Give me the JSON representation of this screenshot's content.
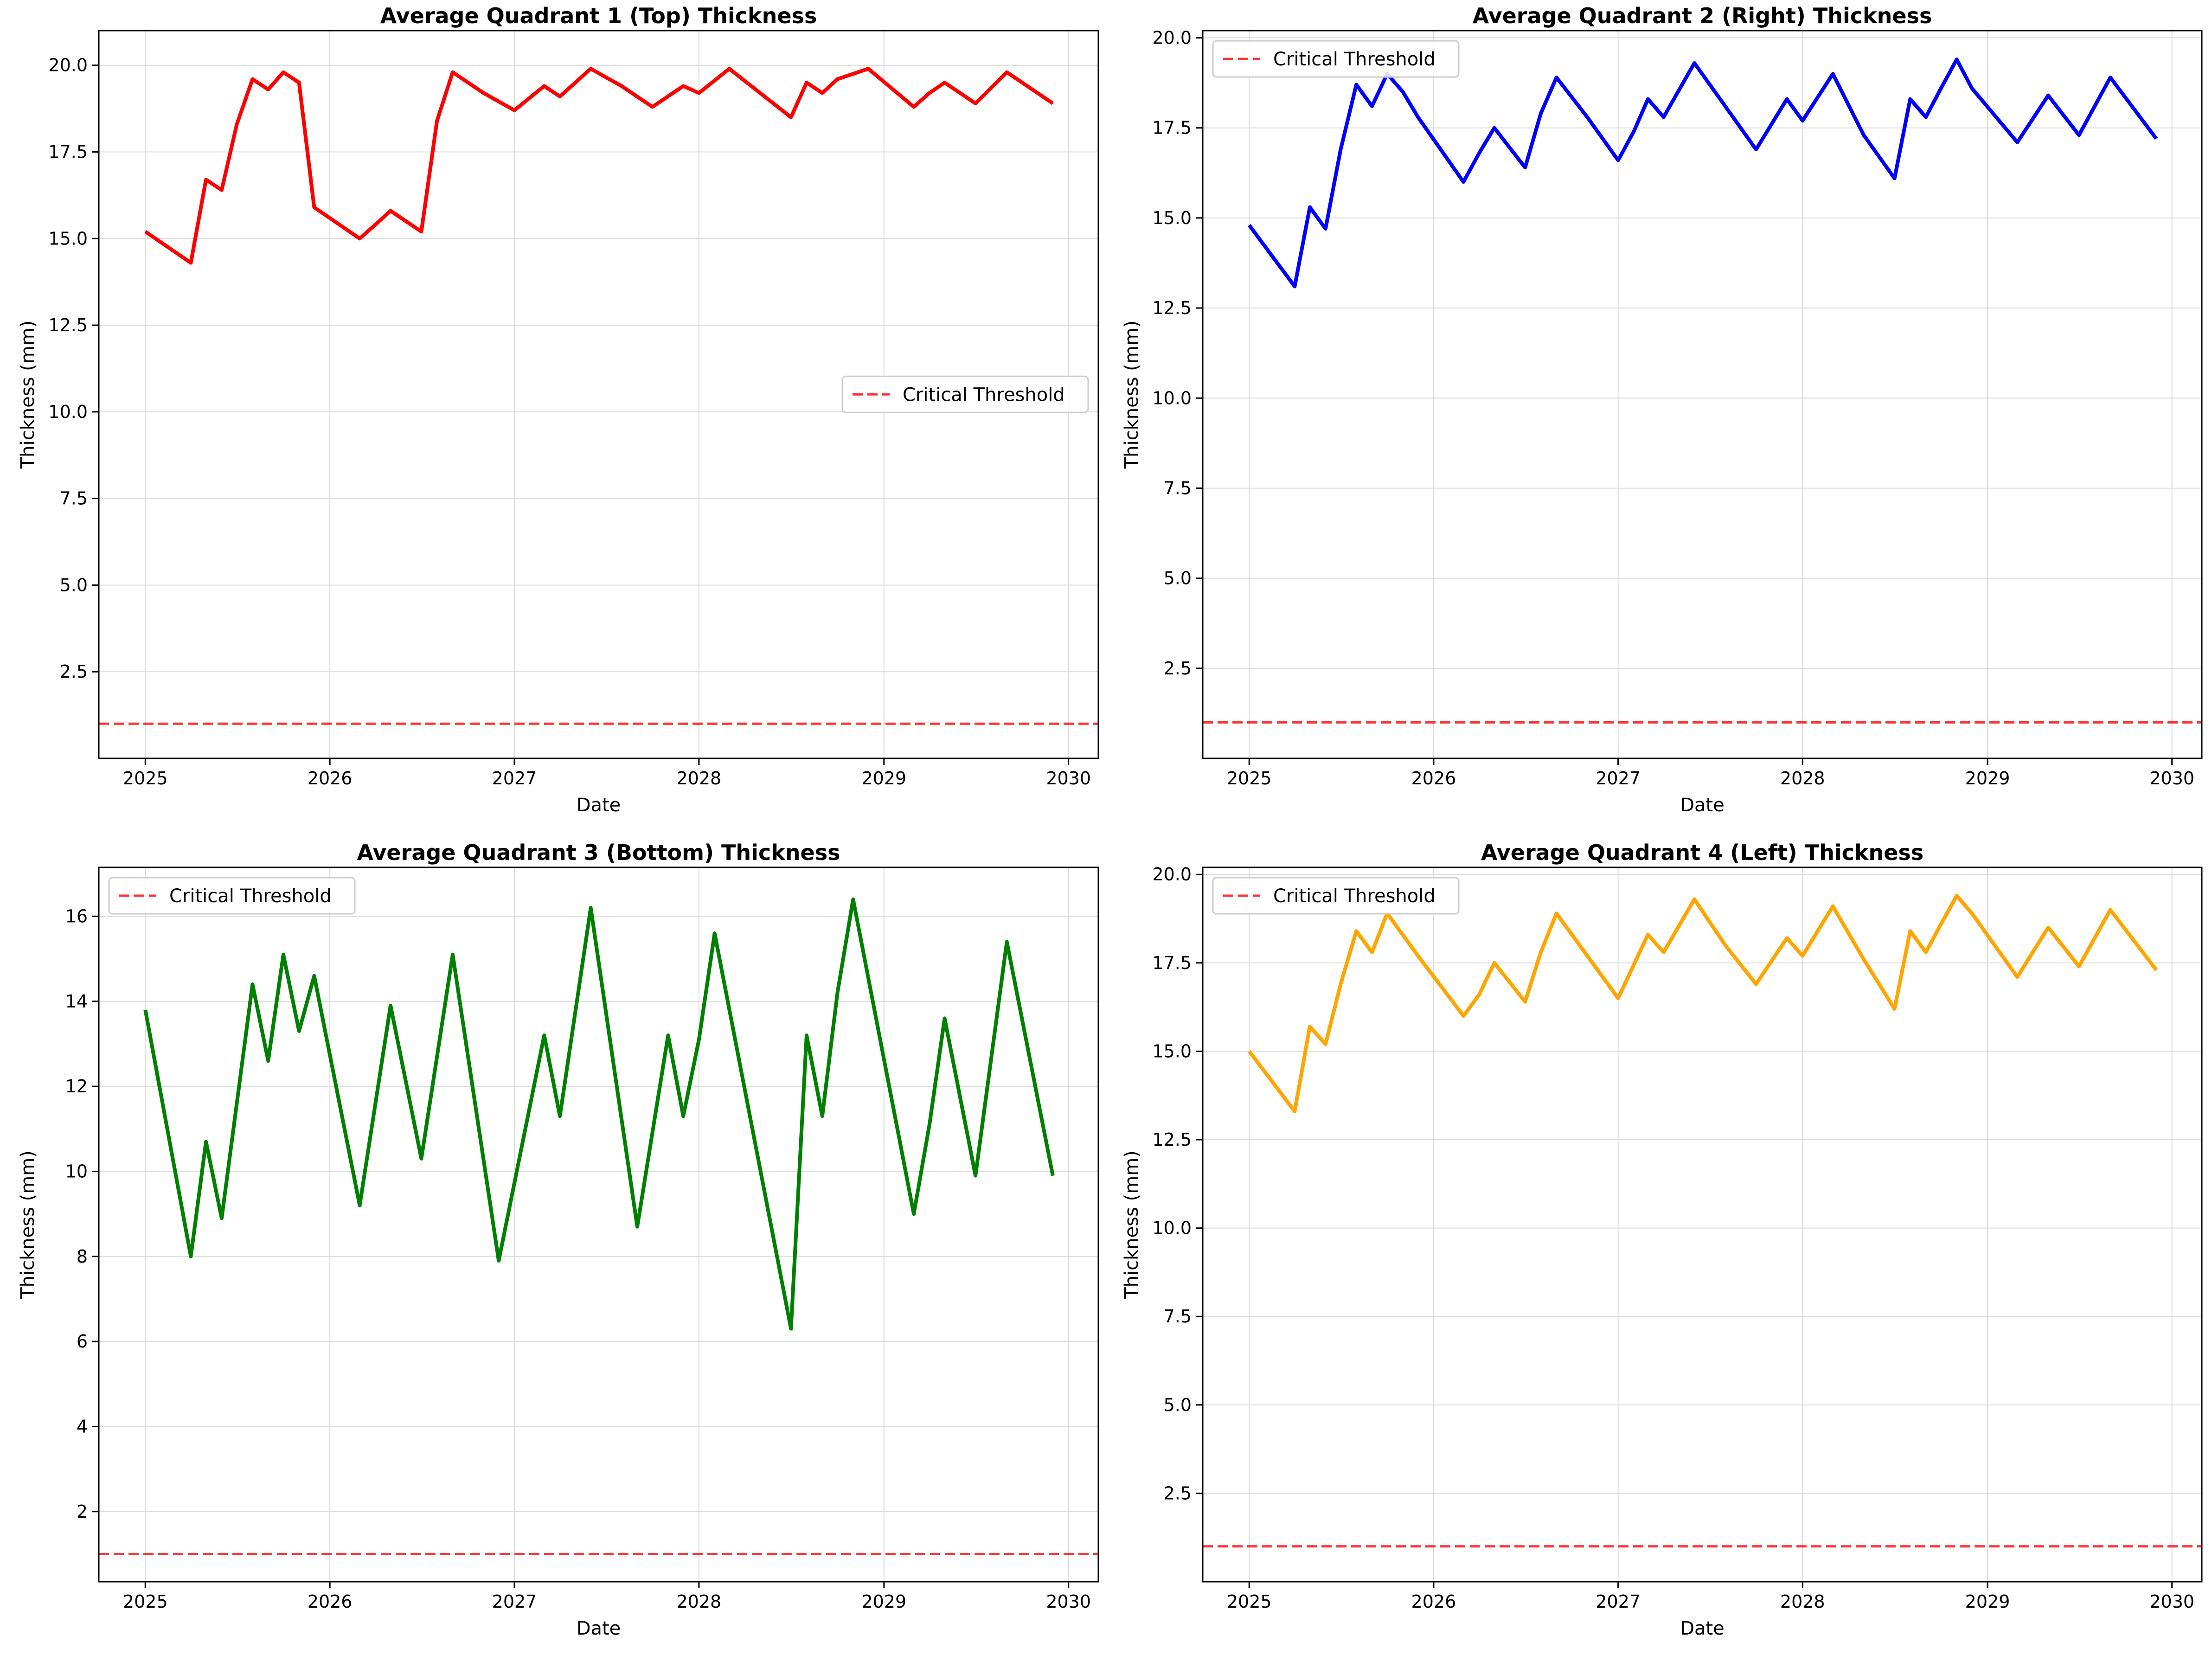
{
  "chart_data": [
    {
      "type": "line",
      "title": "Average Quadrant 1 (Top) Thickness",
      "xlabel": "Date",
      "ylabel": "Thickness (mm)",
      "xlim": [
        "2024-10-01",
        "2030-03-01"
      ],
      "ylim": [
        0,
        21
      ],
      "xticks": [
        {
          "date": "2025-01-01",
          "label": "2025"
        },
        {
          "date": "2026-01-01",
          "label": "2026"
        },
        {
          "date": "2027-01-01",
          "label": "2027"
        },
        {
          "date": "2028-01-01",
          "label": "2028"
        },
        {
          "date": "2029-01-01",
          "label": "2029"
        },
        {
          "date": "2030-01-01",
          "label": "2030"
        }
      ],
      "yticks": [
        2.5,
        5.0,
        7.5,
        10.0,
        12.5,
        15.0,
        17.5,
        20.0
      ],
      "ytick_labels": [
        "2.5",
        "5.0",
        "7.5",
        "10.0",
        "12.5",
        "15.0",
        "17.5",
        "20.0"
      ],
      "grid": true,
      "legend_position": "center-right",
      "threshold": {
        "name": "Critical Threshold",
        "value": 1.0,
        "color": "#ff0000",
        "style": "dashed"
      },
      "series": [
        {
          "color": "#ff0000",
          "x": [
            "2025-01-01",
            "2025-04-01",
            "2025-05-01",
            "2025-06-01",
            "2025-07-01",
            "2025-08-01",
            "2025-09-01",
            "2025-10-01",
            "2025-11-01",
            "2025-12-01",
            "2026-03-01",
            "2026-04-01",
            "2026-05-01",
            "2026-07-01",
            "2026-08-01",
            "2026-09-01",
            "2026-11-01",
            "2027-01-01",
            "2027-03-01",
            "2027-04-01",
            "2027-06-01",
            "2027-08-01",
            "2027-10-01",
            "2027-12-01",
            "2028-01-01",
            "2028-03-01",
            "2028-05-01",
            "2028-07-01",
            "2028-08-01",
            "2028-09-01",
            "2028-10-01",
            "2028-12-01",
            "2029-03-01",
            "2029-04-01",
            "2029-05-01",
            "2029-07-01",
            "2029-09-01",
            "2029-12-01"
          ],
          "y": [
            15.2,
            14.3,
            16.7,
            16.4,
            18.3,
            19.6,
            19.3,
            19.8,
            19.5,
            15.9,
            15.0,
            15.4,
            15.8,
            15.2,
            18.4,
            19.8,
            19.2,
            18.7,
            19.4,
            19.1,
            19.9,
            19.4,
            18.8,
            19.4,
            19.2,
            19.9,
            19.2,
            18.5,
            19.5,
            19.2,
            19.6,
            19.9,
            18.8,
            19.2,
            19.5,
            18.9,
            19.8,
            18.9
          ]
        }
      ]
    },
    {
      "type": "line",
      "title": "Average Quadrant 2 (Right) Thickness",
      "xlabel": "Date",
      "ylabel": "Thickness (mm)",
      "xlim": [
        "2024-10-01",
        "2030-03-01"
      ],
      "ylim": [
        0,
        20.2
      ],
      "xticks": [
        {
          "date": "2025-01-01",
          "label": "2025"
        },
        {
          "date": "2026-01-01",
          "label": "2026"
        },
        {
          "date": "2027-01-01",
          "label": "2027"
        },
        {
          "date": "2028-01-01",
          "label": "2028"
        },
        {
          "date": "2029-01-01",
          "label": "2029"
        },
        {
          "date": "2030-01-01",
          "label": "2030"
        }
      ],
      "yticks": [
        2.5,
        5.0,
        7.5,
        10.0,
        12.5,
        15.0,
        17.5,
        20.0
      ],
      "ytick_labels": [
        "2.5",
        "5.0",
        "7.5",
        "10.0",
        "12.5",
        "15.0",
        "17.5",
        "20.0"
      ],
      "grid": true,
      "legend_position": "top-left",
      "threshold": {
        "name": "Critical Threshold",
        "value": 1.0,
        "color": "#ff0000",
        "style": "dashed"
      },
      "series": [
        {
          "color": "#0000ff",
          "x": [
            "2025-01-01",
            "2025-04-01",
            "2025-05-01",
            "2025-06-01",
            "2025-07-01",
            "2025-08-01",
            "2025-09-01",
            "2025-10-01",
            "2025-11-01",
            "2025-12-01",
            "2026-03-01",
            "2026-04-01",
            "2026-05-01",
            "2026-07-01",
            "2026-08-01",
            "2026-09-01",
            "2026-11-01",
            "2027-01-01",
            "2027-02-01",
            "2027-03-01",
            "2027-04-01",
            "2027-06-01",
            "2027-08-01",
            "2027-10-01",
            "2027-12-01",
            "2028-01-01",
            "2028-03-01",
            "2028-05-01",
            "2028-07-01",
            "2028-08-01",
            "2028-09-01",
            "2028-10-01",
            "2028-11-01",
            "2028-12-01",
            "2029-03-01",
            "2029-05-01",
            "2029-07-01",
            "2029-09-01",
            "2029-12-01"
          ],
          "y": [
            14.8,
            13.1,
            15.3,
            14.7,
            16.9,
            18.7,
            18.1,
            19.0,
            18.5,
            17.8,
            16.0,
            16.8,
            17.5,
            16.4,
            17.9,
            18.9,
            17.8,
            16.6,
            17.4,
            18.3,
            17.8,
            19.3,
            18.1,
            16.9,
            18.3,
            17.7,
            19.0,
            17.3,
            16.1,
            18.3,
            17.8,
            18.6,
            19.4,
            18.6,
            17.1,
            18.4,
            17.3,
            18.9,
            17.2
          ]
        }
      ]
    },
    {
      "type": "line",
      "title": "Average Quadrant 3 (Bottom) Thickness",
      "xlabel": "Date",
      "ylabel": "Thickness (mm)",
      "xlim": [
        "2024-10-01",
        "2030-03-01"
      ],
      "ylim": [
        0.35,
        17.15
      ],
      "xticks": [
        {
          "date": "2025-01-01",
          "label": "2025"
        },
        {
          "date": "2026-01-01",
          "label": "2026"
        },
        {
          "date": "2027-01-01",
          "label": "2027"
        },
        {
          "date": "2028-01-01",
          "label": "2028"
        },
        {
          "date": "2029-01-01",
          "label": "2029"
        },
        {
          "date": "2030-01-01",
          "label": "2030"
        }
      ],
      "yticks": [
        2,
        4,
        6,
        8,
        10,
        12,
        14,
        16
      ],
      "ytick_labels": [
        "2",
        "4",
        "6",
        "8",
        "10",
        "12",
        "14",
        "16"
      ],
      "grid": true,
      "legend_position": "top-left",
      "threshold": {
        "name": "Critical Threshold",
        "value": 1.0,
        "color": "#ff0000",
        "style": "dashed"
      },
      "series": [
        {
          "color": "#008000",
          "x": [
            "2025-01-01",
            "2025-02-01",
            "2025-04-01",
            "2025-05-01",
            "2025-06-01",
            "2025-08-01",
            "2025-09-01",
            "2025-10-01",
            "2025-11-01",
            "2025-12-01",
            "2026-03-01",
            "2026-05-01",
            "2026-07-01",
            "2026-09-01",
            "2026-12-01",
            "2027-03-01",
            "2027-04-01",
            "2027-06-01",
            "2027-09-01",
            "2027-11-01",
            "2027-12-01",
            "2028-01-01",
            "2028-02-01",
            "2028-07-01",
            "2028-08-01",
            "2028-09-01",
            "2028-10-01",
            "2028-11-01",
            "2029-03-01",
            "2029-04-01",
            "2029-05-01",
            "2029-07-01",
            "2029-09-01",
            "2029-12-01"
          ],
          "y": [
            13.8,
            11.8,
            8.0,
            10.7,
            8.9,
            14.4,
            12.6,
            15.1,
            13.3,
            14.6,
            9.2,
            13.9,
            10.3,
            15.1,
            7.9,
            13.2,
            11.3,
            16.2,
            8.7,
            13.2,
            11.3,
            13.1,
            15.6,
            6.3,
            13.2,
            11.3,
            14.2,
            16.4,
            9.0,
            11.1,
            13.6,
            9.9,
            15.4,
            9.9
          ]
        }
      ]
    },
    {
      "type": "line",
      "title": "Average Quadrant 4 (Left) Thickness",
      "xlabel": "Date",
      "ylabel": "Thickness (mm)",
      "xlim": [
        "2024-10-01",
        "2030-03-01"
      ],
      "ylim": [
        0,
        20.2
      ],
      "xticks": [
        {
          "date": "2025-01-01",
          "label": "2025"
        },
        {
          "date": "2026-01-01",
          "label": "2026"
        },
        {
          "date": "2027-01-01",
          "label": "2027"
        },
        {
          "date": "2028-01-01",
          "label": "2028"
        },
        {
          "date": "2029-01-01",
          "label": "2029"
        },
        {
          "date": "2030-01-01",
          "label": "2030"
        }
      ],
      "yticks": [
        2.5,
        5.0,
        7.5,
        10.0,
        12.5,
        15.0,
        17.5,
        20.0
      ],
      "ytick_labels": [
        "2.5",
        "5.0",
        "7.5",
        "10.0",
        "12.5",
        "15.0",
        "17.5",
        "20.0"
      ],
      "grid": true,
      "legend_position": "top-left",
      "threshold": {
        "name": "Critical Threshold",
        "value": 1.0,
        "color": "#ff0000",
        "style": "dashed"
      },
      "series": [
        {
          "color": "#ffa500",
          "x": [
            "2025-01-01",
            "2025-04-01",
            "2025-05-01",
            "2025-06-01",
            "2025-07-01",
            "2025-08-01",
            "2025-09-01",
            "2025-10-01",
            "2025-12-01",
            "2026-03-01",
            "2026-04-01",
            "2026-05-01",
            "2026-07-01",
            "2026-08-01",
            "2026-09-01",
            "2026-11-01",
            "2027-01-01",
            "2027-03-01",
            "2027-04-01",
            "2027-06-01",
            "2027-08-01",
            "2027-10-01",
            "2027-12-01",
            "2028-01-01",
            "2028-03-01",
            "2028-05-01",
            "2028-07-01",
            "2028-08-01",
            "2028-09-01",
            "2028-10-01",
            "2028-11-01",
            "2028-12-01",
            "2029-03-01",
            "2029-05-01",
            "2029-07-01",
            "2029-09-01",
            "2029-12-01"
          ],
          "y": [
            15.0,
            13.3,
            15.7,
            15.2,
            16.9,
            18.4,
            17.8,
            18.9,
            17.7,
            16.0,
            16.6,
            17.5,
            16.4,
            17.8,
            18.9,
            17.7,
            16.5,
            18.3,
            17.8,
            19.3,
            18.0,
            16.9,
            18.2,
            17.7,
            19.1,
            17.6,
            16.2,
            18.4,
            17.8,
            18.6,
            19.4,
            18.9,
            17.1,
            18.5,
            17.4,
            19.0,
            17.3
          ]
        }
      ]
    }
  ]
}
